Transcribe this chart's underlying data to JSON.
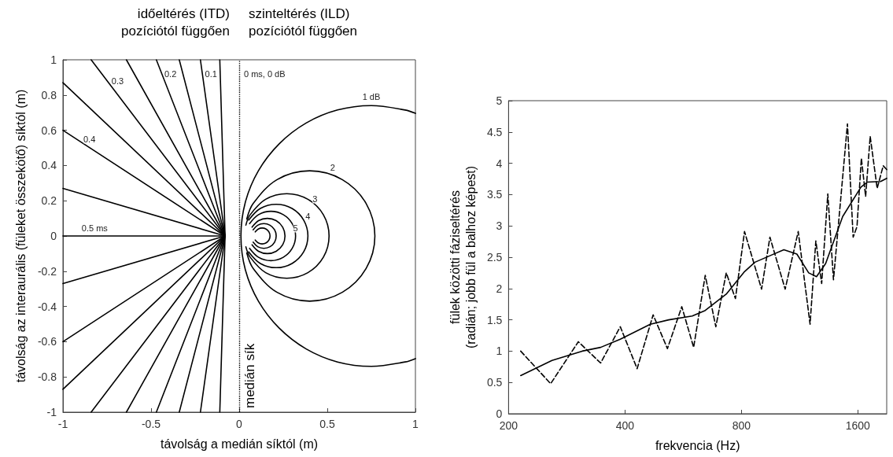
{
  "chart_data": [
    {
      "type": "line",
      "xlabel": "távolság a medián síktól (m)",
      "ylabel": "távolság az interaurális (füleket összekötő) síktól (m)",
      "xlim": [
        -1,
        1
      ],
      "xticks": [
        -1,
        -0.5,
        0,
        0.5,
        1
      ],
      "ylim": [
        -1,
        1
      ],
      "yticks": [
        -1,
        -0.8,
        -0.6,
        -0.4,
        -0.2,
        0,
        0.2,
        0.4,
        0.6,
        0.8,
        1
      ],
      "grid": false,
      "marker": "none",
      "line_style": "solid",
      "ref_lines": [
        {
          "axis": "x",
          "value": 0,
          "label": "medián sík",
          "line_style": "dotted",
          "color": "#000000"
        }
      ],
      "annotations": [
        "időeltérés (ITD)\npozíciótól függően",
        "szinteltérés (ILD)\npozíciótól függően",
        "0 ms, 0 dB",
        {
          "text": "0.1",
          "x": -0.16,
          "y": 0.92
        },
        {
          "text": "0.2",
          "x": -0.39,
          "y": 0.92
        },
        {
          "text": "0.3",
          "x": -0.69,
          "y": 0.88
        },
        {
          "text": "0.4",
          "x": -0.85,
          "y": 0.55
        },
        {
          "text": "0.5 ms",
          "x": -0.82,
          "y": 0.045
        },
        {
          "text": "1 dB",
          "x": 0.75,
          "y": 0.79
        },
        {
          "text": "2",
          "x": 0.53,
          "y": 0.39
        },
        {
          "text": "3",
          "x": 0.43,
          "y": 0.21
        },
        {
          "text": "4",
          "x": 0.39,
          "y": 0.11
        },
        {
          "text": "5",
          "x": 0.32,
          "y": 0.045
        }
      ],
      "series": [
        {
          "color": "#000000",
          "x": [
            -0.08,
            -0.11
          ],
          "values": [
            0,
            1
          ]
        },
        {
          "color": "#000000",
          "x": [
            -0.08,
            -0.22
          ],
          "values": [
            0,
            1
          ]
        },
        {
          "color": "#000000",
          "x": [
            -0.08,
            -0.34
          ],
          "values": [
            0,
            1
          ]
        },
        {
          "color": "#000000",
          "x": [
            -0.08,
            -0.47
          ],
          "values": [
            0,
            1
          ]
        },
        {
          "color": "#000000",
          "x": [
            -0.08,
            -0.64
          ],
          "values": [
            0,
            1
          ]
        },
        {
          "color": "#000000",
          "x": [
            -0.08,
            -0.84
          ],
          "values": [
            0,
            1
          ]
        },
        {
          "color": "#000000",
          "x": [
            -0.08,
            -1
          ],
          "values": [
            0,
            0.87
          ]
        },
        {
          "color": "#000000",
          "x": [
            -0.08,
            -1
          ],
          "values": [
            0,
            0.6
          ]
        },
        {
          "color": "#000000",
          "x": [
            -0.08,
            -1
          ],
          "values": [
            0,
            0.27
          ]
        },
        {
          "color": "#000000",
          "x": [
            -0.08,
            -1
          ],
          "values": [
            0,
            0
          ]
        },
        {
          "color": "#000000",
          "x": [
            -0.08,
            -1
          ],
          "values": [
            0,
            -0.27
          ]
        },
        {
          "color": "#000000",
          "x": [
            -0.08,
            -1
          ],
          "values": [
            0,
            -0.6
          ]
        },
        {
          "color": "#000000",
          "x": [
            -0.08,
            -1
          ],
          "values": [
            0,
            -0.87
          ]
        },
        {
          "color": "#000000",
          "x": [
            -0.08,
            -0.84
          ],
          "values": [
            0,
            -1
          ]
        },
        {
          "color": "#000000",
          "x": [
            -0.08,
            -0.64
          ],
          "values": [
            0,
            -1
          ]
        },
        {
          "color": "#000000",
          "x": [
            -0.08,
            -0.47
          ],
          "values": [
            0,
            -1
          ]
        },
        {
          "color": "#000000",
          "x": [
            -0.08,
            -0.34
          ],
          "values": [
            0,
            -1
          ]
        },
        {
          "color": "#000000",
          "x": [
            -0.08,
            -0.22
          ],
          "values": [
            0,
            -1
          ]
        },
        {
          "color": "#000000",
          "x": [
            -0.08,
            -0.11
          ],
          "values": [
            0,
            -1
          ]
        },
        {
          "color": "#000000",
          "x": [
            1,
            0.942,
            0.75,
            0.558,
            0.38,
            0.227,
            0.109,
            0.035,
            0.01,
            0.035,
            0.109,
            0.227,
            0.38,
            0.558,
            0.75,
            0.942,
            1
          ],
          "values": [
            0.696,
            0.715,
            0.74,
            0.715,
            0.641,
            0.523,
            0.37,
            0.192,
            0,
            -0.192,
            -0.37,
            -0.523,
            -0.641,
            -0.715,
            -0.74,
            -0.715,
            -0.696
          ]
        },
        {
          "color": "#000000",
          "x": [
            0.043,
            0.08,
            0.215,
            0.4,
            0.585,
            0.72,
            0.77,
            0.72,
            0.585,
            0.4,
            0.215,
            0.08,
            0.043
          ],
          "values": [
            0.096,
            0.185,
            0.32,
            0.37,
            0.32,
            0.185,
            0,
            -0.185,
            -0.32,
            -0.37,
            -0.32,
            -0.185,
            -0.096
          ]
        },
        {
          "color": "#000000",
          "x": [
            0.038,
            0.062,
            0.15,
            0.27,
            0.39,
            0.478,
            0.51,
            0.478,
            0.39,
            0.27,
            0.15,
            0.062,
            0.038
          ],
          "values": [
            0.062,
            0.12,
            0.208,
            0.24,
            0.208,
            0.12,
            0,
            -0.12,
            -0.208,
            -0.24,
            -0.208,
            -0.12,
            -0.062
          ]
        },
        {
          "color": "#000000",
          "x": [
            0.054,
            0.12,
            0.21,
            0.3,
            0.366,
            0.39,
            0.366,
            0.3,
            0.21,
            0.12,
            0.054
          ],
          "values": [
            0.09,
            0.156,
            0.18,
            0.156,
            0.09,
            0,
            -0.09,
            -0.156,
            -0.18,
            -0.156,
            -0.09
          ]
        },
        {
          "color": "#000000",
          "x": [
            0.059,
            0.11,
            0.18,
            0.25,
            0.301,
            0.32,
            0.301,
            0.25,
            0.18,
            0.11,
            0.059
          ],
          "values": [
            0.07,
            0.121,
            0.14,
            0.121,
            0.07,
            0,
            -0.07,
            -0.121,
            -0.14,
            -0.121,
            -0.07
          ]
        },
        {
          "color": "#000000",
          "x": [
            0.073,
            0.11,
            0.16,
            0.21,
            0.247,
            0.26,
            0.247,
            0.21,
            0.16,
            0.11,
            0.073
          ],
          "values": [
            0.05,
            0.087,
            0.1,
            0.087,
            0.05,
            0,
            -0.05,
            -0.087,
            -0.1,
            -0.087,
            -0.05
          ]
        },
        {
          "color": "#000000",
          "x": [
            0.079,
            0.105,
            0.14,
            0.175,
            0.201,
            0.21,
            0.201,
            0.175,
            0.14,
            0.105,
            0.079
          ],
          "values": [
            0.035,
            0.061,
            0.07,
            0.061,
            0.035,
            0,
            -0.035,
            -0.061,
            -0.07,
            -0.061,
            -0.035
          ]
        },
        {
          "color": "#000000",
          "x": [
            0.091,
            0.108,
            0.13,
            0.153,
            0.169,
            0.175,
            0.169,
            0.153,
            0.13,
            0.108,
            0.091
          ],
          "values": [
            0.023,
            0.039,
            0.045,
            0.039,
            0.023,
            0,
            -0.023,
            -0.039,
            -0.045,
            -0.039,
            -0.023
          ]
        }
      ]
    },
    {
      "type": "line",
      "xlabel": "frekvencia (Hz)",
      "ylabel": "fülek közötti fáziseltérés\n(radián; jobb fül a balhoz képest)",
      "log": "x",
      "xlim": [
        200,
        1900
      ],
      "xticks": [
        200,
        400,
        800,
        1600
      ],
      "ylim": [
        0,
        5
      ],
      "yticks": [
        0,
        0.5,
        1,
        1.5,
        2,
        2.5,
        3,
        3.5,
        4,
        4.5,
        5
      ],
      "grid": false,
      "marker": "none",
      "series": [
        {
          "color": "#000000",
          "line_style": "solid",
          "x": [
            215,
            259,
            310,
            346,
            389,
            465,
            519,
            597,
            645,
            731,
            815,
            867,
            953,
            1030,
            1113,
            1194,
            1251,
            1321,
            1462,
            1630,
            1694,
            1832,
            1900
          ],
          "values": [
            0.61,
            0.85,
            1.0,
            1.06,
            1.19,
            1.43,
            1.5,
            1.56,
            1.65,
            1.91,
            2.27,
            2.42,
            2.53,
            2.62,
            2.55,
            2.25,
            2.19,
            2.4,
            3.15,
            3.62,
            3.7,
            3.71,
            3.76
          ]
        },
        {
          "color": "#000000",
          "line_style": "dashed",
          "x": [
            215,
            257,
            303,
            346,
            389,
            430,
            473,
            515,
            561,
            602,
            645,
            687,
            731,
            772,
            815,
            902,
            948,
            1038,
            1122,
            1204,
            1246,
            1290,
            1338,
            1384,
            1504,
            1556,
            1592,
            1634,
            1676,
            1722,
            1795,
            1861,
            1900
          ],
          "values": [
            1.0,
            0.48,
            1.15,
            0.81,
            1.39,
            0.72,
            1.58,
            1.04,
            1.71,
            1.06,
            2.21,
            1.39,
            2.25,
            1.84,
            2.91,
            1.99,
            2.82,
            1.99,
            2.91,
            1.43,
            2.76,
            2.08,
            3.51,
            2.14,
            4.63,
            2.82,
            2.99,
            4.08,
            3.47,
            4.43,
            3.6,
            3.96,
            3.9
          ]
        }
      ]
    }
  ]
}
